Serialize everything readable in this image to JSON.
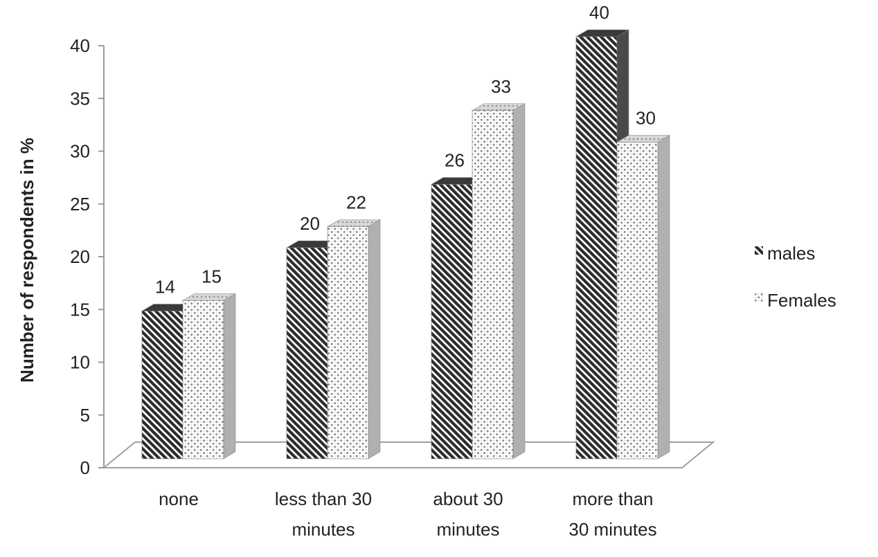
{
  "chart_data": {
    "type": "bar",
    "ylabel": "Number of respondents in %",
    "xlabel": "",
    "ylim": [
      0,
      40
    ],
    "yticks": [
      0,
      5,
      10,
      15,
      20,
      25,
      30,
      35,
      40
    ],
    "categories": [
      [
        "none"
      ],
      [
        "less than 30",
        "minutes"
      ],
      [
        "about 30",
        "minutes"
      ],
      [
        "more than",
        "30 minutes"
      ]
    ],
    "series": [
      {
        "name": "males",
        "values": [
          14,
          20,
          26,
          40
        ],
        "pattern": "diagonal-hatch",
        "color": "#2b2b2b"
      },
      {
        "name": "Females",
        "values": [
          15,
          22,
          33,
          30
        ],
        "pattern": "dotted",
        "color": "#9a9a9a"
      }
    ],
    "grid": false,
    "legend_position": "right",
    "style": "3d"
  }
}
